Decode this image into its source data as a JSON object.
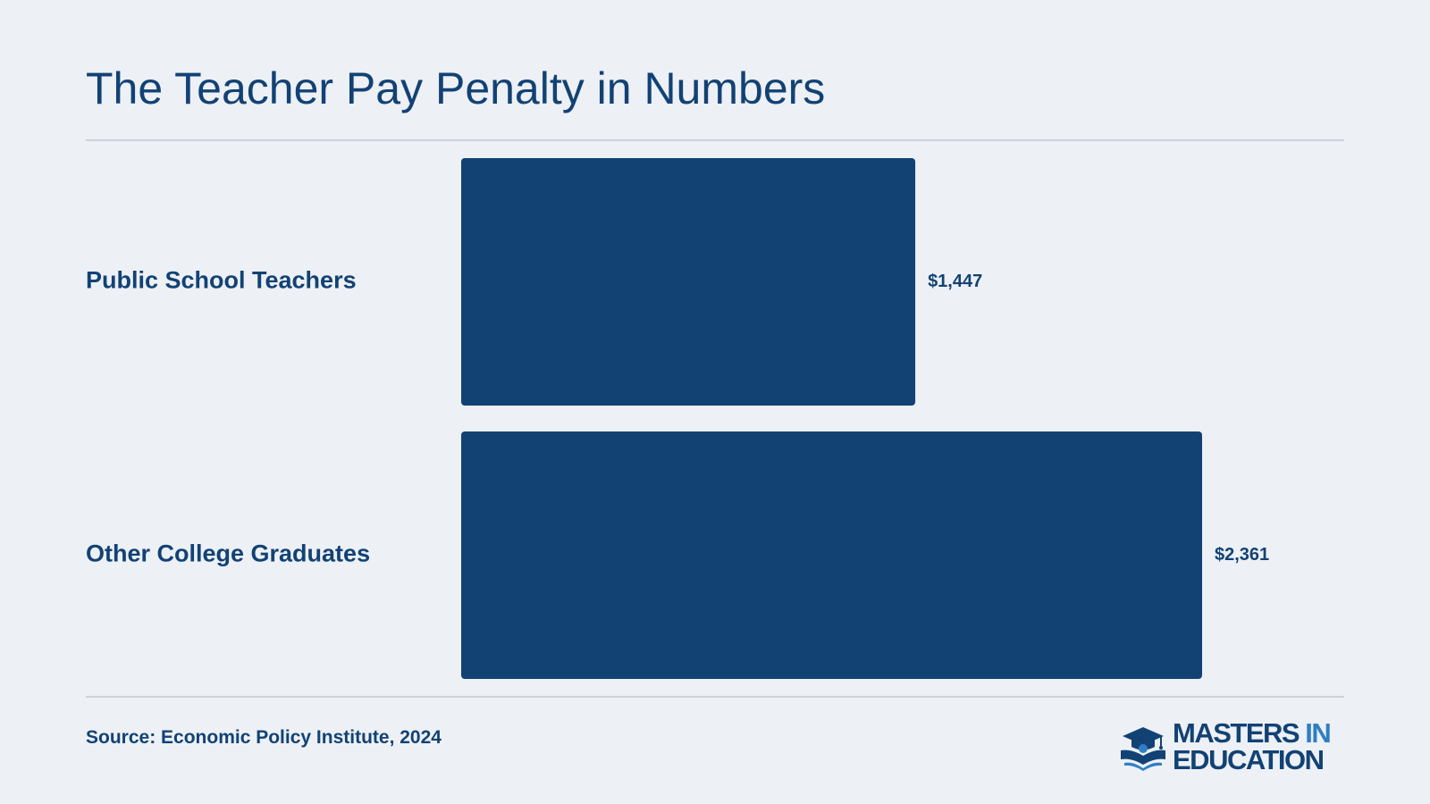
{
  "title": "The Teacher Pay Penalty in Numbers",
  "source": "Source: Economic Policy Institute, 2024",
  "logo": {
    "word1": "MASTERS",
    "word2": "IN",
    "word3": "EDUCATION",
    "icon": "graduation-cap-book-icon"
  },
  "colors": {
    "background": "#edf0f5",
    "bar": "#124274",
    "text": "#124274",
    "rule": "#cdd3da",
    "logo_accent": "#2f7fc4"
  },
  "chart_data": {
    "type": "bar",
    "orientation": "horizontal",
    "title": "The Teacher Pay Penalty in Numbers",
    "categories": [
      "Public School Teachers",
      "Other College Graduates"
    ],
    "values": [
      1447,
      2361
    ],
    "value_labels": [
      "$1,447",
      "$2,361"
    ],
    "xlabel": "",
    "ylabel": "",
    "xlim": [
      0,
      2361
    ],
    "grid": false,
    "legend": "none"
  }
}
